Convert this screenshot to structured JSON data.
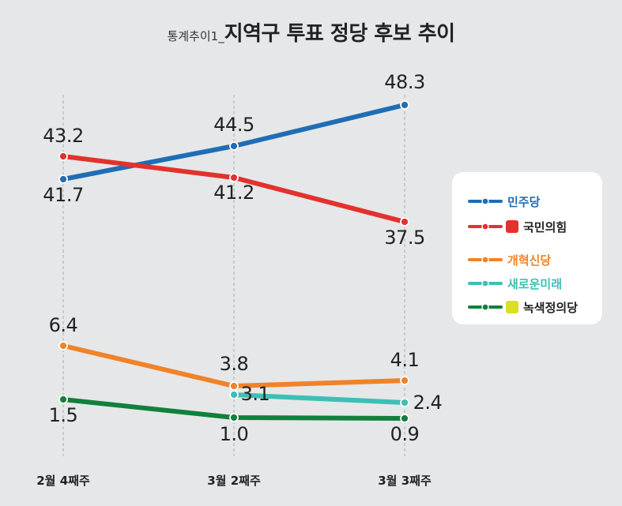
{
  "title": {
    "prefix": "통계추이1_",
    "main": "지역구 투표 정당 후보 추이"
  },
  "chart_data": {
    "type": "line",
    "title": "통계추이1_지역구 투표 정당 후보 추이",
    "categories": [
      "2월 4째주",
      "3월 2째주",
      "3월 3째주"
    ],
    "ylim": [
      0,
      50
    ],
    "grid": "vertical dashed",
    "legend_position": "right",
    "series": [
      {
        "name": "민주당",
        "color": "#1f6db5",
        "values": [
          41.7,
          44.5,
          48.3
        ]
      },
      {
        "name": "국민의힘",
        "color": "#e3312d",
        "values": [
          43.2,
          41.2,
          37.5
        ]
      },
      {
        "name": "개혁신당",
        "color": "#f08228",
        "values": [
          6.4,
          3.8,
          4.1
        ]
      },
      {
        "name": "새로운미래",
        "color": "#3cbfb4",
        "values": [
          null,
          3.1,
          2.4
        ]
      },
      {
        "name": "녹색정의당",
        "color": "#11803b",
        "values": [
          1.5,
          1.0,
          0.9
        ]
      }
    ],
    "data_labels": [
      {
        "series": 0,
        "point": 0,
        "text": "41.7"
      },
      {
        "series": 0,
        "point": 1,
        "text": "44.5"
      },
      {
        "series": 0,
        "point": 2,
        "text": "48.3"
      },
      {
        "series": 1,
        "point": 0,
        "text": "43.2"
      },
      {
        "series": 1,
        "point": 1,
        "text": "41.2"
      },
      {
        "series": 1,
        "point": 2,
        "text": "37.5"
      },
      {
        "series": 2,
        "point": 0,
        "text": "6.4"
      },
      {
        "series": 2,
        "point": 1,
        "text": "3.8"
      },
      {
        "series": 2,
        "point": 2,
        "text": "4.1"
      },
      {
        "series": 3,
        "point": 1,
        "text": "3.1"
      },
      {
        "series": 3,
        "point": 2,
        "text": "2.4"
      },
      {
        "series": 4,
        "point": 0,
        "text": "1.5"
      },
      {
        "series": 4,
        "point": 1,
        "text": "1.0"
      },
      {
        "series": 4,
        "point": 2,
        "text": "0.9"
      }
    ]
  }
}
